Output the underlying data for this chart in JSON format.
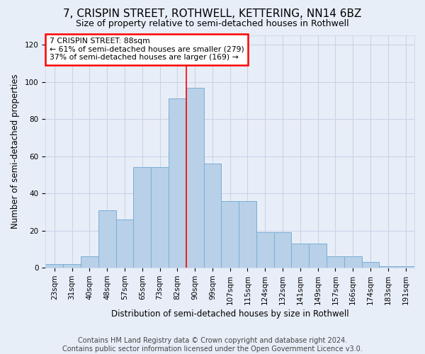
{
  "title": "7, CRISPIN STREET, ROTHWELL, KETTERING, NN14 6BZ",
  "subtitle": "Size of property relative to semi-detached houses in Rothwell",
  "xlabel": "Distribution of semi-detached houses by size in Rothwell",
  "ylabel": "Number of semi-detached properties",
  "footer1": "Contains HM Land Registry data © Crown copyright and database right 2024.",
  "footer2": "Contains public sector information licensed under the Open Government Licence v3.0.",
  "bin_labels": [
    "23sqm",
    "31sqm",
    "40sqm",
    "48sqm",
    "57sqm",
    "65sqm",
    "73sqm",
    "82sqm",
    "90sqm",
    "99sqm",
    "107sqm",
    "115sqm",
    "124sqm",
    "132sqm",
    "141sqm",
    "149sqm",
    "157sqm",
    "166sqm",
    "174sqm",
    "183sqm",
    "191sqm"
  ],
  "bar_heights": [
    2,
    2,
    6,
    31,
    26,
    54,
    54,
    91,
    97,
    56,
    36,
    36,
    19,
    19,
    13,
    13,
    6,
    6,
    3,
    1,
    1
  ],
  "bar_color": "#b8d0e8",
  "bar_edge_color": "#7aafd4",
  "annotation_text": "7 CRISPIN STREET: 88sqm\n← 61% of semi-detached houses are smaller (279)\n37% of semi-detached houses are larger (169) →",
  "annotation_box_color": "white",
  "annotation_box_edge_color": "red",
  "property_line_x": 7.5,
  "ylim": [
    0,
    125
  ],
  "yticks": [
    0,
    20,
    40,
    60,
    80,
    100,
    120
  ],
  "grid_color": "#c8d4e8",
  "background_color": "#e8eef8",
  "title_fontsize": 11,
  "subtitle_fontsize": 9,
  "axis_label_fontsize": 8.5,
  "tick_fontsize": 7.5,
  "footer_fontsize": 7
}
